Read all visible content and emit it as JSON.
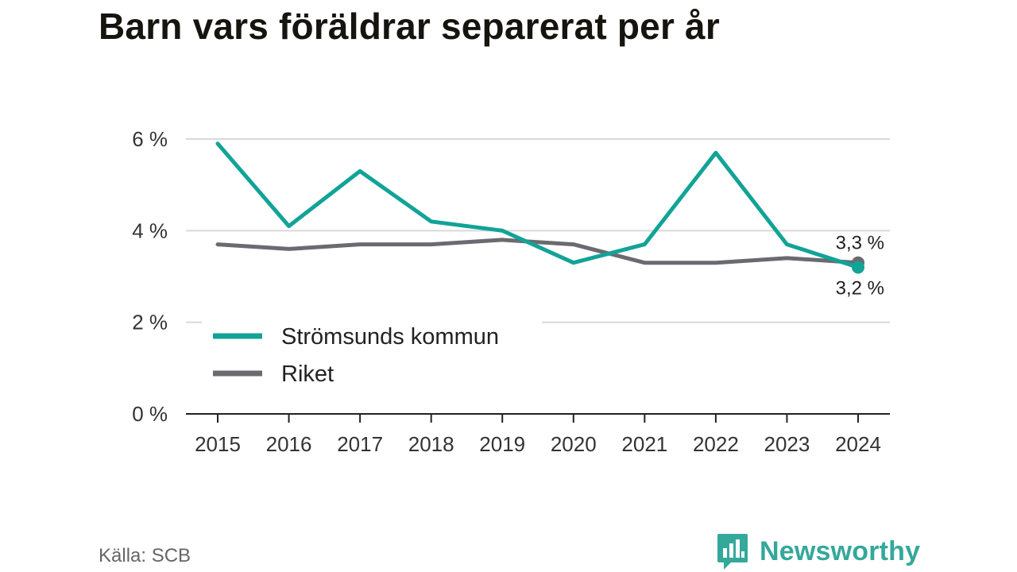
{
  "title": "Barn vars föräldrar separerat per år",
  "source": "Källa: SCB",
  "brand": {
    "name": "Newsworthy",
    "icon": "newsworthy-logo-icon"
  },
  "colors": {
    "kommun": "#12a397",
    "riket": "#6b6a70",
    "brand": "#34a89a",
    "grid": "#d9d9d9",
    "axis": "#222222"
  },
  "chart_data": {
    "type": "line",
    "title": "Barn vars föräldrar separerat per år",
    "x": [
      "2015",
      "2016",
      "2017",
      "2018",
      "2019",
      "2020",
      "2021",
      "2022",
      "2023",
      "2024"
    ],
    "y_ticks": [
      {
        "value": 0,
        "label": "0 %"
      },
      {
        "value": 2,
        "label": "2 %"
      },
      {
        "value": 4,
        "label": "4 %"
      },
      {
        "value": 6,
        "label": "6 %"
      }
    ],
    "ylim": [
      0,
      6
    ],
    "grid": true,
    "legend_position": "bottom-left",
    "series": [
      {
        "name": "Strömsunds kommun",
        "color": "#12a397",
        "values": [
          5.9,
          4.1,
          5.3,
          4.2,
          4.0,
          3.3,
          3.7,
          5.7,
          3.7,
          3.2
        ],
        "end_label": "3,2 %"
      },
      {
        "name": "Riket",
        "color": "#6b6a70",
        "values": [
          3.7,
          3.6,
          3.7,
          3.7,
          3.8,
          3.7,
          3.3,
          3.3,
          3.4,
          3.3
        ],
        "end_label": "3,3 %"
      }
    ]
  }
}
